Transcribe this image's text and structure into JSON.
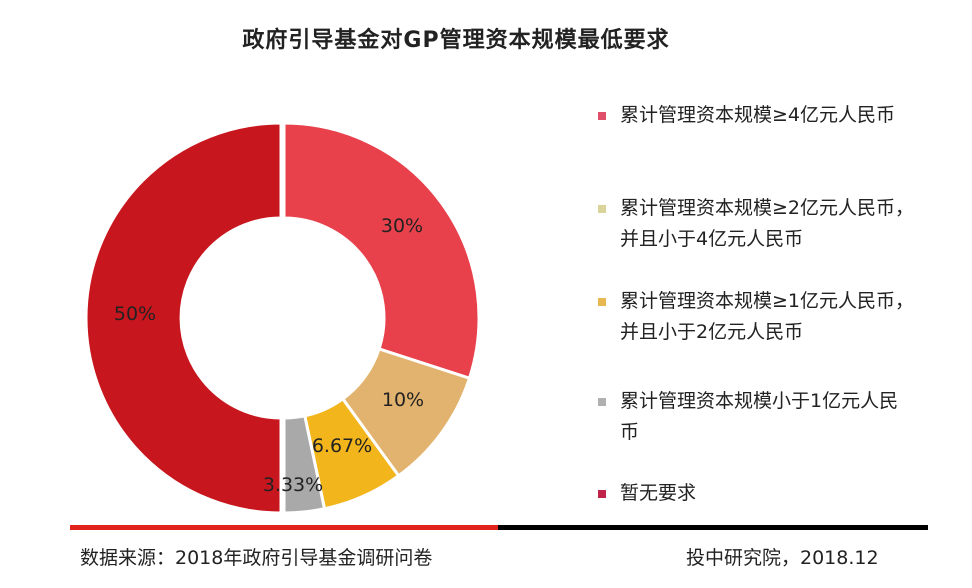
{
  "chart_data": {
    "type": "pie",
    "donut": true,
    "title": "政府引导基金对GP管理资本规模最低要求",
    "slices": [
      {
        "label": "累计管理资本规模≥4亿元人民币",
        "value": 30,
        "display": "30%",
        "color": "#e8414b",
        "legend_color": "#e0506a"
      },
      {
        "label": "累计管理资本规模≥2亿元人民币，并且小于4亿元人民币",
        "value": 10,
        "display": "10%",
        "color": "#e2b36e",
        "legend_color": "#d8d49a"
      },
      {
        "label": "累计管理资本规模≥1亿元人民币，并且小于2亿元人民币",
        "value": 6.67,
        "display": "6.67%",
        "color": "#f2b51c",
        "legend_color": "#e8b850"
      },
      {
        "label": "累计管理资本规模小于1亿元人民币",
        "value": 3.33,
        "display": "3.33%",
        "color": "#a9a9a9",
        "legend_color": "#b0b0b0"
      },
      {
        "label": "暂无要求",
        "value": 50,
        "display": "50%",
        "color": "#c8161e",
        "legend_color": "#c02448"
      }
    ],
    "legend_position": "right"
  },
  "footer": {
    "source": "数据来源：2018年政府引导基金调研问卷",
    "credit": "投中研究院，2018.12"
  }
}
